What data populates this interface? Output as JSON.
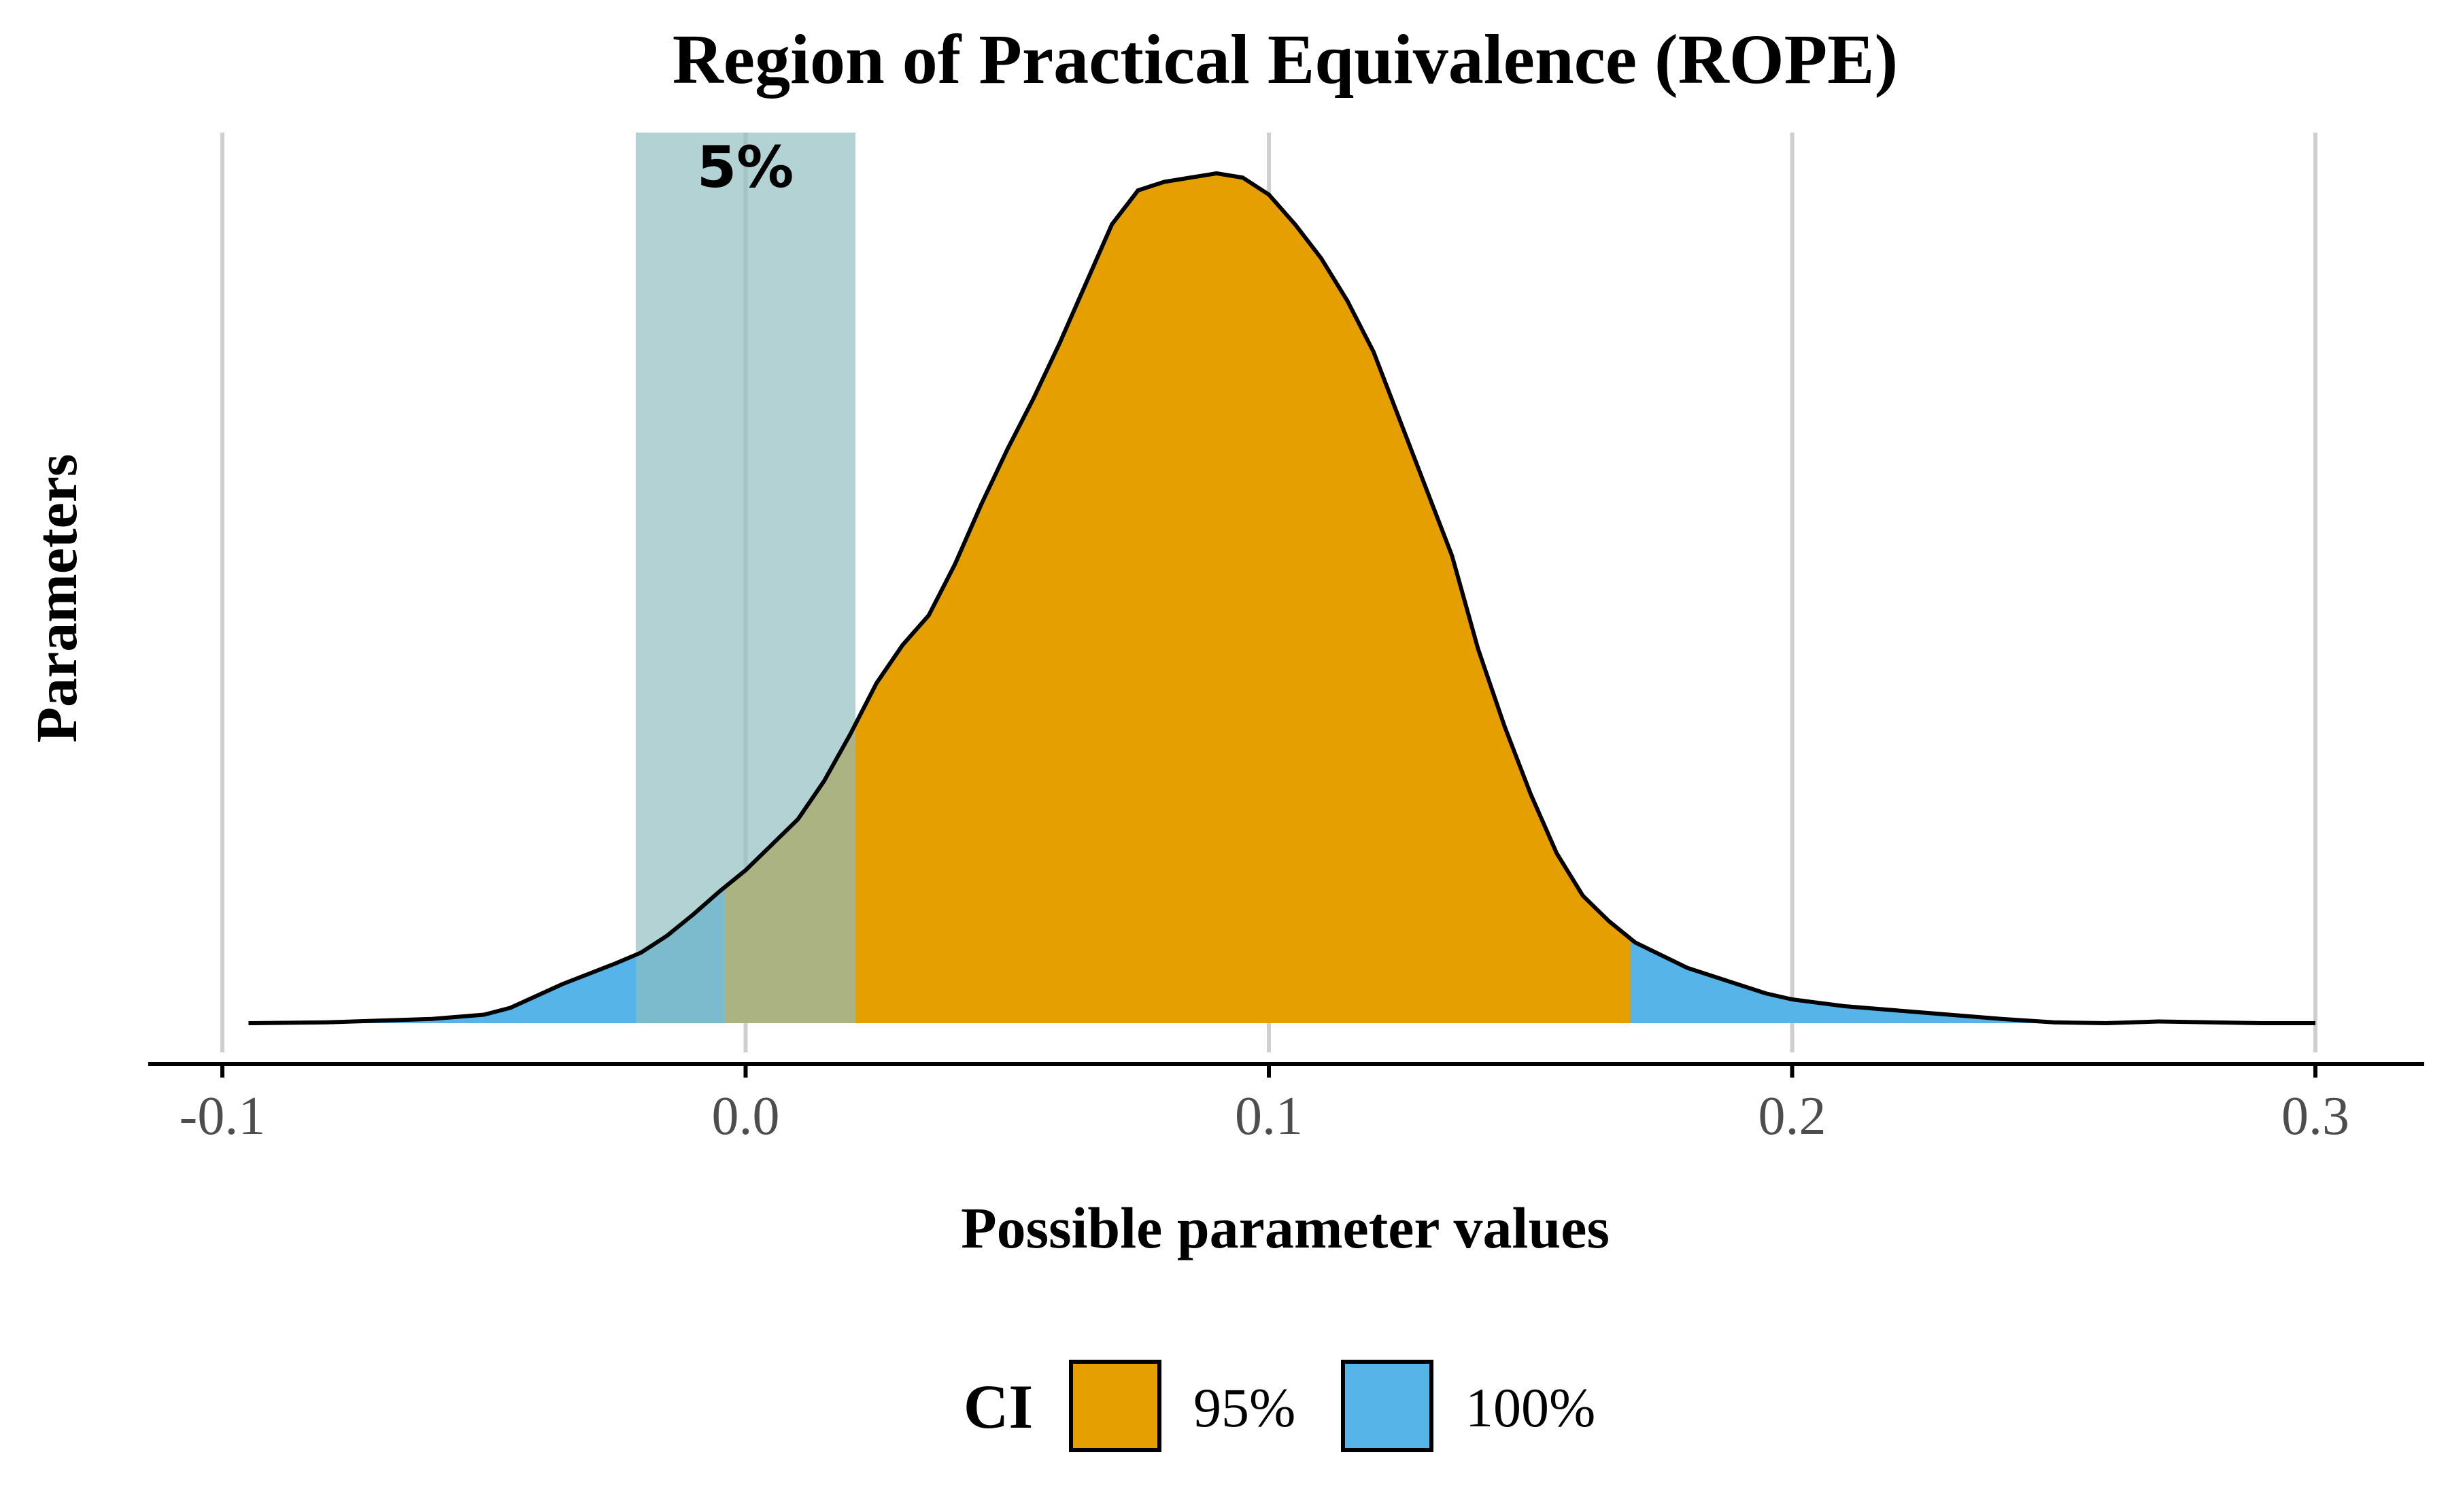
{
  "chart_data": {
    "type": "area",
    "title": "Region of Practical Equivalence (ROPE)",
    "xlabel": "Possible parameter values",
    "ylabel": "Parameters",
    "xlim": [
      -0.1,
      0.3
    ],
    "xticks": [
      -0.1,
      0.0,
      0.1,
      0.2,
      0.3
    ],
    "xtick_labels": [
      "-0.1",
      "0.0",
      "0.1",
      "0.2",
      "0.3"
    ],
    "grid": "vertical major gridlines",
    "rope": {
      "low": -0.021,
      "high": 0.021,
      "label": "5%",
      "color": "#8fbcbf"
    },
    "ci_95": {
      "low": -0.004,
      "high": 0.169
    },
    "density": {
      "x": [
        -0.095,
        -0.08,
        -0.07,
        -0.06,
        -0.05,
        -0.045,
        -0.04,
        -0.035,
        -0.03,
        -0.025,
        -0.02,
        -0.015,
        -0.01,
        -0.005,
        0.0,
        0.005,
        0.01,
        0.015,
        0.02,
        0.025,
        0.03,
        0.035,
        0.04,
        0.045,
        0.05,
        0.055,
        0.06,
        0.065,
        0.07,
        0.075,
        0.08,
        0.085,
        0.09,
        0.095,
        0.1,
        0.105,
        0.11,
        0.115,
        0.12,
        0.125,
        0.13,
        0.135,
        0.14,
        0.145,
        0.15,
        0.155,
        0.16,
        0.165,
        0.17,
        0.175,
        0.18,
        0.185,
        0.19,
        0.195,
        0.2,
        0.21,
        0.22,
        0.23,
        0.24,
        0.25,
        0.26,
        0.27,
        0.28,
        0.29,
        0.3
      ],
      "y": [
        0.0,
        0.001,
        0.003,
        0.005,
        0.01,
        0.018,
        0.032,
        0.046,
        0.058,
        0.07,
        0.083,
        0.103,
        0.128,
        0.155,
        0.18,
        0.21,
        0.24,
        0.285,
        0.34,
        0.4,
        0.445,
        0.48,
        0.54,
        0.61,
        0.675,
        0.735,
        0.8,
        0.87,
        0.94,
        0.98,
        0.99,
        0.995,
        1.0,
        0.995,
        0.975,
        0.94,
        0.9,
        0.85,
        0.79,
        0.71,
        0.63,
        0.55,
        0.44,
        0.35,
        0.27,
        0.2,
        0.15,
        0.12,
        0.095,
        0.08,
        0.065,
        0.055,
        0.045,
        0.035,
        0.028,
        0.02,
        0.015,
        0.01,
        0.005,
        0.001,
        0.0,
        0.002,
        0.001,
        0.0,
        0.0
      ]
    },
    "legend": {
      "title": "CI",
      "position": "bottom",
      "items": [
        {
          "label": "95%",
          "color": "#e69f00"
        },
        {
          "label": "100%",
          "color": "#56b4e9"
        }
      ]
    }
  }
}
